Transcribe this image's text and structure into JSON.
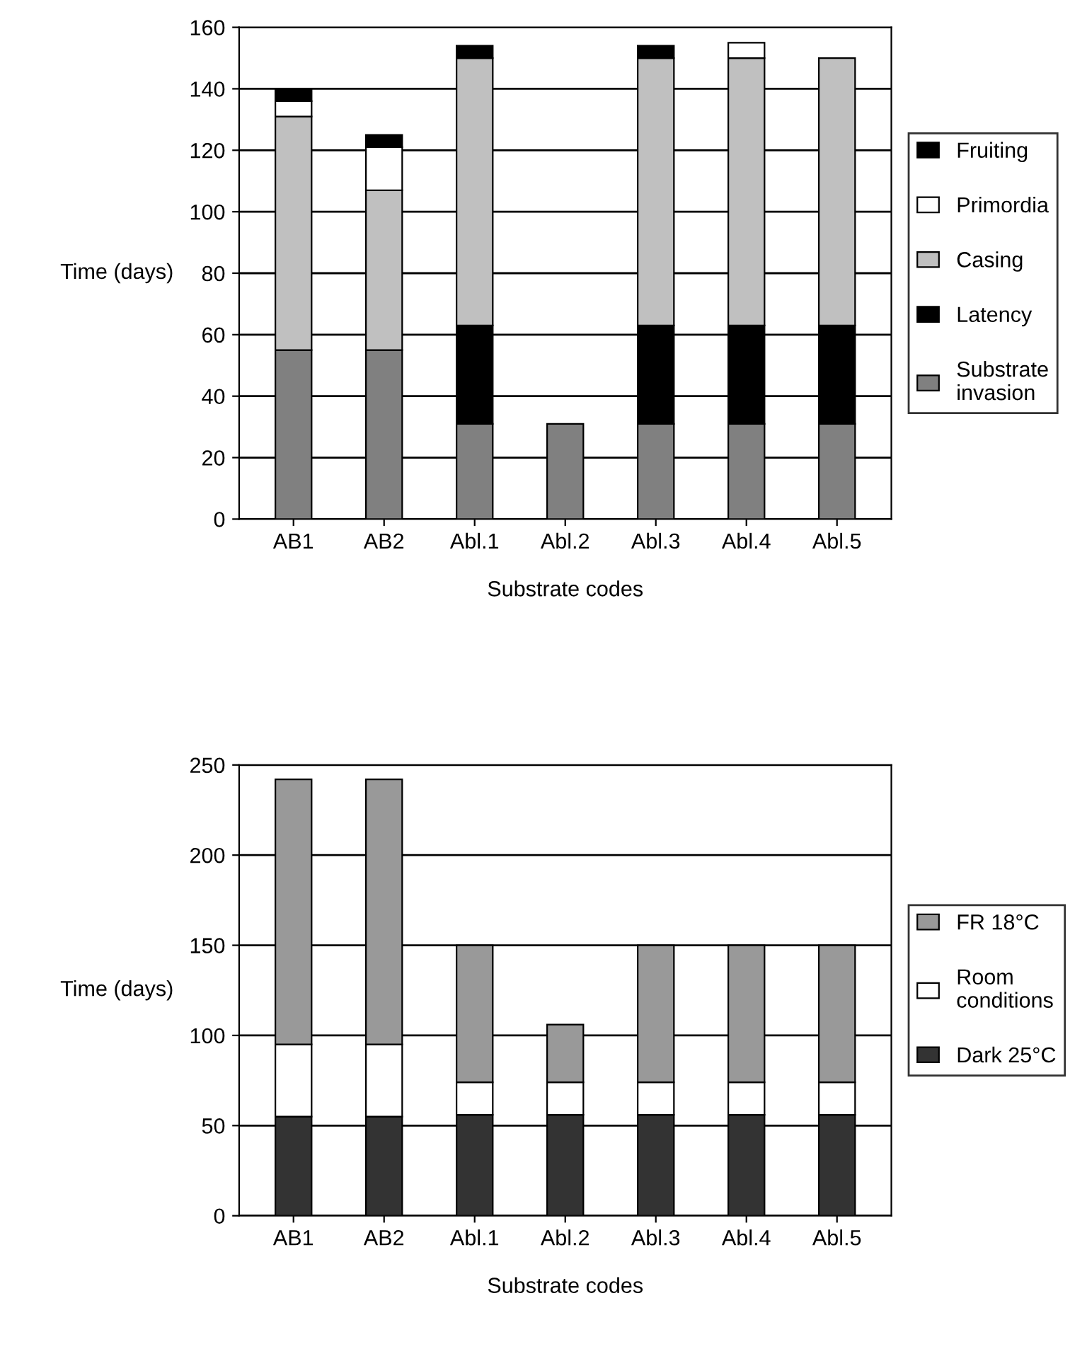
{
  "chart_data": [
    {
      "type": "bar",
      "stacked": true,
      "xlabel": "Substrate codes",
      "ylabel": "Time (days)",
      "categories": [
        "AB1",
        "AB2",
        "Abl.1",
        "Abl.2",
        "Abl.3",
        "Abl.4",
        "Abl.5"
      ],
      "series": [
        {
          "name": "Substrate\ninvasion",
          "color": "#808080",
          "values": [
            55,
            55,
            31,
            31,
            31,
            31,
            31
          ]
        },
        {
          "name": "Latency",
          "color": "#000000",
          "values": [
            null,
            null,
            32,
            null,
            32,
            32,
            32
          ]
        },
        {
          "name": "Casing",
          "color": "#c0c0c0",
          "values": [
            76,
            52,
            87,
            null,
            87,
            87,
            87
          ]
        },
        {
          "name": "Primordia",
          "color": "#ffffff",
          "values": [
            5,
            14,
            null,
            null,
            null,
            5,
            null
          ]
        },
        {
          "name": "Fruiting",
          "color": "#000000",
          "values": [
            4,
            4,
            4,
            null,
            4,
            null,
            null
          ]
        }
      ],
      "ylim": [
        0,
        160
      ],
      "yticks": [
        0,
        20,
        40,
        60,
        80,
        100,
        120,
        140,
        160
      ],
      "grid": "y",
      "legend": "right"
    },
    {
      "type": "bar",
      "stacked": true,
      "xlabel": "Substrate codes",
      "ylabel": "Time (days)",
      "categories": [
        "AB1",
        "AB2",
        "Abl.1",
        "Abl.2",
        "Abl.3",
        "Abl.4",
        "Abl.5"
      ],
      "series": [
        {
          "name": "Dark 25°C",
          "color": "#333333",
          "values": [
            55,
            55,
            56,
            56,
            56,
            56,
            56
          ]
        },
        {
          "name": "Room\nconditions",
          "color": "#ffffff",
          "values": [
            40,
            40,
            18,
            18,
            18,
            18,
            18
          ]
        },
        {
          "name": "FR 18°C",
          "color": "#999999",
          "values": [
            147,
            147,
            76,
            32,
            76,
            76,
            76
          ]
        }
      ],
      "ylim": [
        0,
        250
      ],
      "yticks": [
        0,
        50,
        100,
        150,
        200,
        250
      ],
      "grid": "y",
      "legend": "right"
    }
  ]
}
